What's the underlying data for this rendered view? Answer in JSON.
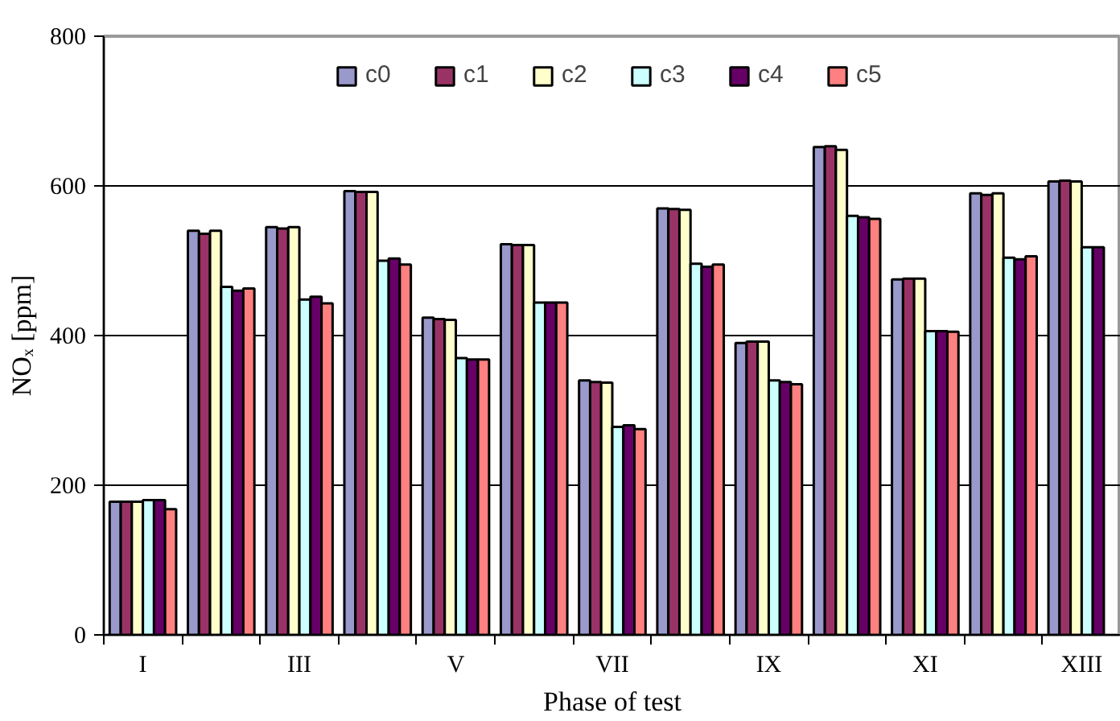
{
  "chart_data": {
    "type": "bar",
    "xlabel": "Phase of test",
    "ylabel": "NOₓ [ppm]",
    "categories": [
      "I",
      null,
      "III",
      null,
      "V",
      null,
      "VII",
      null,
      "IX",
      null,
      "XI",
      null,
      "XIII"
    ],
    "ylim": [
      0,
      800
    ],
    "yticks": [
      0,
      200,
      400,
      600,
      800
    ],
    "grid": "y",
    "legend": "top",
    "series": [
      {
        "name": "c0",
        "color": "#9999cc",
        "values": [
          178,
          540,
          545,
          593,
          424,
          522,
          340,
          570,
          390,
          652,
          475,
          590,
          606
        ]
      },
      {
        "name": "c1",
        "color": "#993366",
        "values": [
          178,
          536,
          543,
          592,
          422,
          521,
          338,
          569,
          392,
          653,
          476,
          588,
          607
        ]
      },
      {
        "name": "c2",
        "color": "#ffffcc",
        "values": [
          178,
          540,
          545,
          592,
          421,
          521,
          337,
          568,
          392,
          648,
          476,
          590,
          606
        ]
      },
      {
        "name": "c3",
        "color": "#ccffff",
        "values": [
          180,
          465,
          448,
          500,
          370,
          444,
          278,
          496,
          340,
          560,
          406,
          504,
          518
        ]
      },
      {
        "name": "c4",
        "color": "#660066",
        "values": [
          180,
          460,
          452,
          503,
          368,
          444,
          280,
          492,
          338,
          558,
          406,
          502,
          518
        ]
      },
      {
        "name": "c5",
        "color": "#ff8080",
        "values": [
          168,
          463,
          443,
          495,
          368,
          444,
          275,
          495,
          335,
          556,
          405,
          506,
          null
        ]
      }
    ]
  }
}
